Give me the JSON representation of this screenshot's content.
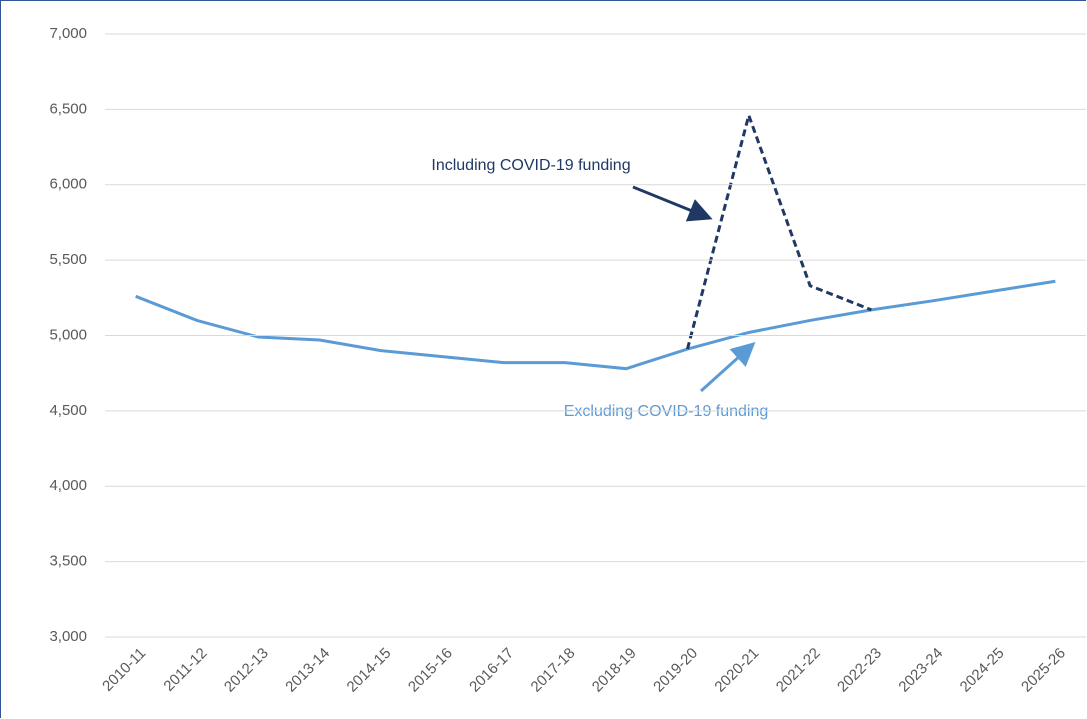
{
  "chart_data": {
    "type": "line",
    "categories": [
      "2010-11",
      "2011-12",
      "2012-13",
      "2013-14",
      "2014-15",
      "2015-16",
      "2016-17",
      "2017-18",
      "2018-19",
      "2019-20",
      "2020-21",
      "2021-22",
      "2022-23",
      "2023-24",
      "2024-25",
      "2025-26"
    ],
    "series": [
      {
        "name": "Excluding COVID-19 funding",
        "color": "#5b9bd5",
        "dashed": false,
        "values": [
          5260,
          5100,
          4990,
          4970,
          4900,
          4860,
          4820,
          4820,
          4780,
          4910,
          5020,
          5100,
          5170,
          5230,
          5295,
          5360
        ]
      },
      {
        "name": "Including COVID-19 funding",
        "color": "#1f3864",
        "dashed": true,
        "values": [
          null,
          null,
          null,
          null,
          null,
          null,
          null,
          null,
          null,
          4910,
          6460,
          5330,
          5170,
          null,
          null,
          null
        ]
      }
    ],
    "ylim": [
      3000,
      7000
    ],
    "yticks": [
      {
        "value": 3000,
        "label": "3,000"
      },
      {
        "value": 3500,
        "label": "3,500"
      },
      {
        "value": 4000,
        "label": "4,000"
      },
      {
        "value": 4500,
        "label": "4,500"
      },
      {
        "value": 5000,
        "label": "5,000"
      },
      {
        "value": 5500,
        "label": "5,500"
      },
      {
        "value": 6000,
        "label": "6,000"
      },
      {
        "value": 6500,
        "label": "6,500"
      },
      {
        "value": 7000,
        "label": "7,000"
      }
    ],
    "grid": true
  }
}
